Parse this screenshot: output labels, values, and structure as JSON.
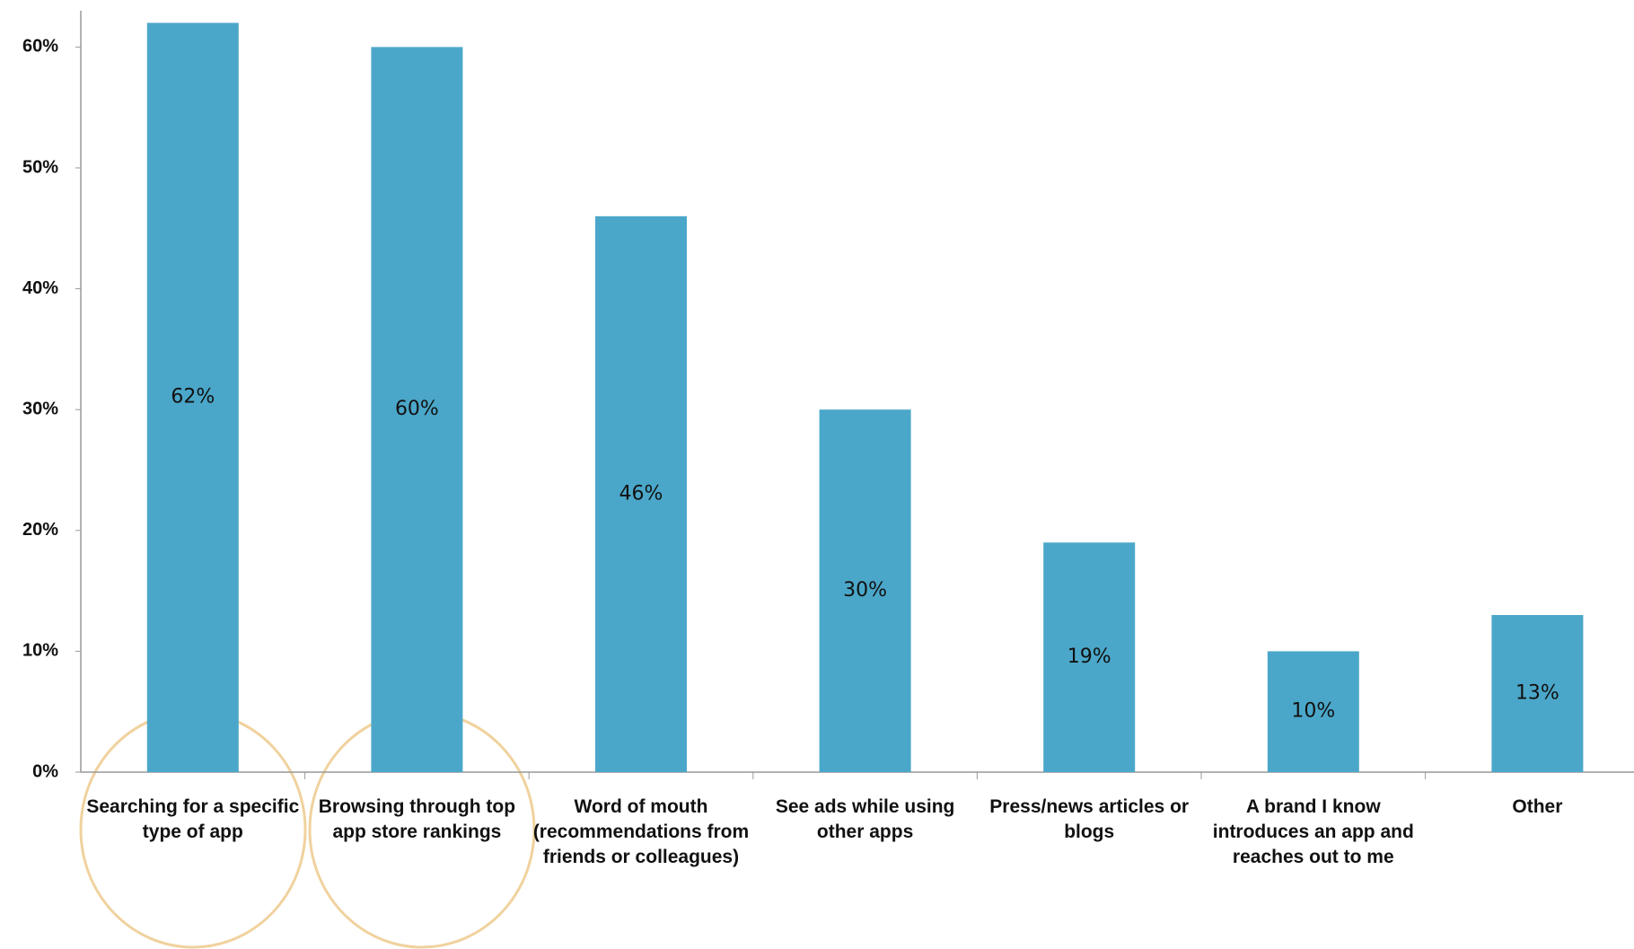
{
  "chart_data": {
    "type": "bar",
    "categories": [
      "Searching for a specific type of app",
      "Browsing through top app store rankings",
      "Word of mouth (recommendations from friends or colleagues)",
      "See ads while using other apps",
      "Press/news articles or blogs",
      "A brand I know introduces an app and reaches out to me",
      "Other"
    ],
    "values": [
      62,
      60,
      46,
      30,
      19,
      10,
      13
    ],
    "value_labels": [
      "62%",
      "60%",
      "46%",
      "30%",
      "19%",
      "10%",
      "13%"
    ],
    "color": "#4ba7c9",
    "ylim": [
      0,
      63
    ],
    "yticks": [
      {
        "value": 0,
        "label": "0%"
      },
      {
        "value": 10,
        "label": "10%"
      },
      {
        "value": 20,
        "label": "20%"
      },
      {
        "value": 30,
        "label": "30%"
      },
      {
        "value": 40,
        "label": "40%"
      },
      {
        "value": 50,
        "label": "50%"
      },
      {
        "value": 60,
        "label": "60%"
      }
    ],
    "grid": false
  }
}
